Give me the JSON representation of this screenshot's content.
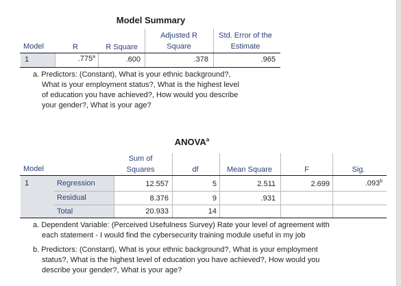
{
  "model_summary": {
    "title": "Model Summary",
    "headers": {
      "model": "Model",
      "r": "R",
      "r_square": "R Square",
      "adj_r_square_1": "Adjusted R",
      "adj_r_square_2": "Square",
      "std_error_1": "Std. Error of the",
      "std_error_2": "Estimate"
    },
    "row": {
      "model": "1",
      "r": ".775",
      "r_sup": "a",
      "r_square": ".600",
      "adj_r_square": ".378",
      "std_error": ".965"
    },
    "footnote": {
      "line1": "a. Predictors: (Constant), What is your ethnic background?,",
      "line2": "What is your employment status?, What is the highest level",
      "line3": "of education you have achieved?, How would you describe",
      "line4": "your gender?, What is your age?"
    }
  },
  "anova": {
    "title": "ANOVA",
    "title_sup": "a",
    "headers": {
      "model": "Model",
      "ss_1": "Sum of",
      "ss_2": "Squares",
      "df": "df",
      "ms": "Mean Square",
      "f": "F",
      "sig": "Sig."
    },
    "model_number": "1",
    "rows": [
      {
        "label": "Regression",
        "ss": "12.557",
        "df": "5",
        "ms": "2.511",
        "f": "2.699",
        "sig": ".093",
        "sig_sup": "b"
      },
      {
        "label": "Residual",
        "ss": "8.376",
        "df": "9",
        "ms": ".931",
        "f": "",
        "sig": ""
      },
      {
        "label": "Total",
        "ss": "20.933",
        "df": "14",
        "ms": "",
        "f": "",
        "sig": ""
      }
    ],
    "footnotes": {
      "a_line1": "a. Dependent Variable: (Perceived Usefulness Survey) Rate your level of agreement with",
      "a_line2": "each statement - I would find the cybersecurity training module useful in my job",
      "b_line1": "b. Predictors: (Constant), What is your ethnic background?, What is your employment",
      "b_line2": "status?, What is the highest level of education you have achieved?, How would you",
      "b_line3": "describe your gender?, What is your age?"
    }
  }
}
